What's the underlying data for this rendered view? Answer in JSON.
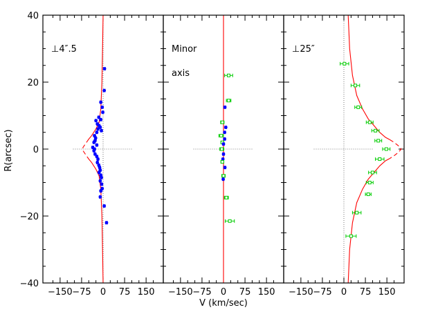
{
  "chart_data": {
    "type": "scatter",
    "xlabel": "V (km/sec)",
    "ylabel": "R(arcsec)",
    "xlim": [
      -210,
      210
    ],
    "ylim": [
      -40,
      40
    ],
    "x_ticks": [
      -150,
      -75,
      0,
      75,
      150
    ],
    "x_tick_labels": [
      "−150",
      "−75",
      "0",
      "75",
      "150"
    ],
    "y_ticks": [
      -40,
      -20,
      0,
      20,
      40
    ],
    "y_tick_labels": [
      "−40",
      "−20",
      "0",
      "20",
      "40"
    ],
    "panels": [
      {
        "labels": [
          "⊥4″.5"
        ],
        "marker": "filled-circle",
        "marker_color": "#0000ff",
        "points": [
          {
            "x": 5,
            "y": 24,
            "e": 3
          },
          {
            "x": 4,
            "y": 17.5,
            "e": 3
          },
          {
            "x": -8,
            "y": 14,
            "e": 3
          },
          {
            "x": -3,
            "y": 12.5,
            "e": 3
          },
          {
            "x": -1,
            "y": 11,
            "e": 3
          },
          {
            "x": -15,
            "y": 9.5,
            "e": 3
          },
          {
            "x": -8,
            "y": 8.8,
            "e": 3
          },
          {
            "x": -25,
            "y": 8.5,
            "e": 3
          },
          {
            "x": -20,
            "y": 7.5,
            "e": 3
          },
          {
            "x": -14,
            "y": 7,
            "e": 3
          },
          {
            "x": -10,
            "y": 6.5,
            "e": 3
          },
          {
            "x": -18,
            "y": 6,
            "e": 3
          },
          {
            "x": -6,
            "y": 5.5,
            "e": 3
          },
          {
            "x": -22,
            "y": 5,
            "e": 3
          },
          {
            "x": -30,
            "y": 4,
            "e": 3
          },
          {
            "x": -26,
            "y": 3.3,
            "e": 3
          },
          {
            "x": -28,
            "y": 2.5,
            "e": 3
          },
          {
            "x": -32,
            "y": 2,
            "e": 3
          },
          {
            "x": -22,
            "y": 1.2,
            "e": 3
          },
          {
            "x": -36,
            "y": 0.5,
            "e": 3
          },
          {
            "x": -30,
            "y": 0,
            "e": 3
          },
          {
            "x": -32,
            "y": -0.5,
            "e": 3
          },
          {
            "x": -28,
            "y": -1.5,
            "e": 3
          },
          {
            "x": -22,
            "y": -2.2,
            "e": 3
          },
          {
            "x": -18,
            "y": -3,
            "e": 3
          },
          {
            "x": -20,
            "y": -4,
            "e": 3
          },
          {
            "x": -15,
            "y": -4.8,
            "e": 3
          },
          {
            "x": -12,
            "y": -5.5,
            "e": 3
          },
          {
            "x": -10,
            "y": -6.3,
            "e": 3
          },
          {
            "x": -14,
            "y": -7,
            "e": 3
          },
          {
            "x": -8,
            "y": -7.8,
            "e": 3
          },
          {
            "x": -6,
            "y": -8.5,
            "e": 3
          },
          {
            "x": -10,
            "y": -9.5,
            "e": 3
          },
          {
            "x": -5,
            "y": -10.5,
            "e": 3
          },
          {
            "x": -3,
            "y": -11.8,
            "e": 3
          },
          {
            "x": -8,
            "y": -12.5,
            "e": 3
          },
          {
            "x": -10,
            "y": -14.3,
            "e": 3
          },
          {
            "x": 4,
            "y": -17,
            "e": 3
          },
          {
            "x": 12,
            "y": -22,
            "e": 3
          }
        ],
        "curves": [
          {
            "style": "solid",
            "color": "#ff0000",
            "points": [
              [
                0,
                40
              ],
              [
                -2,
                30
              ],
              [
                -4,
                20
              ],
              [
                -8,
                12
              ],
              [
                -14,
                8
              ],
              [
                -25,
                6
              ],
              [
                -40,
                4
              ],
              [
                -50,
                3
              ]
            ]
          },
          {
            "style": "dashed",
            "color": "#ff0000",
            "points": [
              [
                -50,
                3
              ],
              [
                -62,
                1.5
              ],
              [
                -70,
                0.5
              ],
              [
                -72,
                0
              ],
              [
                -70,
                -0.5
              ],
              [
                -62,
                -1.5
              ],
              [
                -50,
                -3
              ]
            ]
          },
          {
            "style": "solid",
            "color": "#ff0000",
            "points": [
              [
                -50,
                -3
              ],
              [
                -40,
                -4
              ],
              [
                -25,
                -6
              ],
              [
                -14,
                -8
              ],
              [
                -8,
                -12
              ],
              [
                -4,
                -20
              ],
              [
                -2,
                -30
              ],
              [
                0,
                -40
              ]
            ]
          }
        ]
      },
      {
        "labels": [
          "Minor",
          "axis"
        ],
        "marker": "mixed",
        "points": [
          {
            "x": 18,
            "y": 22,
            "e": 14,
            "filled": false
          },
          {
            "x": 18,
            "y": 14.5,
            "e": 8,
            "filled": false
          },
          {
            "x": 5,
            "y": 12.5,
            "e": 3,
            "filled": true
          },
          {
            "x": -4,
            "y": 8,
            "e": 6,
            "filled": false
          },
          {
            "x": 8,
            "y": 6.5,
            "e": 3,
            "filled": true
          },
          {
            "x": 4,
            "y": 5,
            "e": 3,
            "filled": true
          },
          {
            "x": -8,
            "y": 4,
            "e": 8,
            "filled": false
          },
          {
            "x": 4,
            "y": 3,
            "e": 3,
            "filled": true
          },
          {
            "x": -4,
            "y": 2,
            "e": 5,
            "filled": false
          },
          {
            "x": 0,
            "y": 1.5,
            "e": 3,
            "filled": true
          },
          {
            "x": -6,
            "y": 0,
            "e": 7,
            "filled": false
          },
          {
            "x": 0,
            "y": -1.5,
            "e": 3,
            "filled": true
          },
          {
            "x": -2,
            "y": -3,
            "e": 3,
            "filled": true
          },
          {
            "x": -4,
            "y": -3.8,
            "e": 5,
            "filled": false
          },
          {
            "x": 5,
            "y": -5.5,
            "e": 3,
            "filled": true
          },
          {
            "x": 0,
            "y": -8,
            "e": 6,
            "filled": false
          },
          {
            "x": -1,
            "y": -9,
            "e": 3,
            "filled": true
          },
          {
            "x": 10,
            "y": -14.5,
            "e": 7,
            "filled": false
          },
          {
            "x": 22,
            "y": -21.5,
            "e": 16,
            "filled": false
          }
        ],
        "filled_color": "#0000ff",
        "open_color": "#00cc00",
        "curves": [
          {
            "style": "solid",
            "color": "#ff0000",
            "points": [
              [
                0,
                40
              ],
              [
                0,
                -40
              ]
            ]
          }
        ]
      },
      {
        "labels": [
          "⊥25″"
        ],
        "marker": "open-square",
        "marker_color": "#00cc00",
        "points": [
          {
            "x": 2,
            "y": 25.5,
            "e": 15
          },
          {
            "x": 40,
            "y": 19,
            "e": 15
          },
          {
            "x": 50,
            "y": 12.5,
            "e": 12
          },
          {
            "x": 90,
            "y": 8,
            "e": 12
          },
          {
            "x": 110,
            "y": 5.5,
            "e": 13
          },
          {
            "x": 120,
            "y": 2.5,
            "e": 12
          },
          {
            "x": 148,
            "y": 0,
            "e": 13
          },
          {
            "x": 125,
            "y": -3,
            "e": 15
          },
          {
            "x": 100,
            "y": -7,
            "e": 14
          },
          {
            "x": 90,
            "y": -10,
            "e": 12
          },
          {
            "x": 85,
            "y": -13.5,
            "e": 10
          },
          {
            "x": 45,
            "y": -19,
            "e": 15
          },
          {
            "x": 25,
            "y": -26,
            "e": 18
          }
        ],
        "curves": [
          {
            "style": "solid",
            "color": "#ff0000",
            "points": [
              [
                15,
                40
              ],
              [
                20,
                30
              ],
              [
                30,
                22
              ],
              [
                45,
                16
              ],
              [
                65,
                12
              ],
              [
                85,
                9
              ],
              [
                105,
                7
              ],
              [
                125,
                5
              ],
              [
                145,
                3.5
              ],
              [
                160,
                2.8
              ]
            ]
          },
          {
            "style": "dashed",
            "color": "#ff0000",
            "points": [
              [
                160,
                2.8
              ],
              [
                175,
                2
              ],
              [
                190,
                1
              ],
              [
                200,
                0
              ],
              [
                190,
                -1
              ],
              [
                175,
                -2
              ],
              [
                160,
                -2.8
              ]
            ]
          },
          {
            "style": "solid",
            "color": "#ff0000",
            "points": [
              [
                160,
                -2.8
              ],
              [
                145,
                -3.5
              ],
              [
                125,
                -5
              ],
              [
                105,
                -7
              ],
              [
                85,
                -9
              ],
              [
                65,
                -12
              ],
              [
                45,
                -16
              ],
              [
                30,
                -22
              ],
              [
                20,
                -30
              ],
              [
                15,
                -40
              ]
            ]
          }
        ]
      }
    ]
  }
}
